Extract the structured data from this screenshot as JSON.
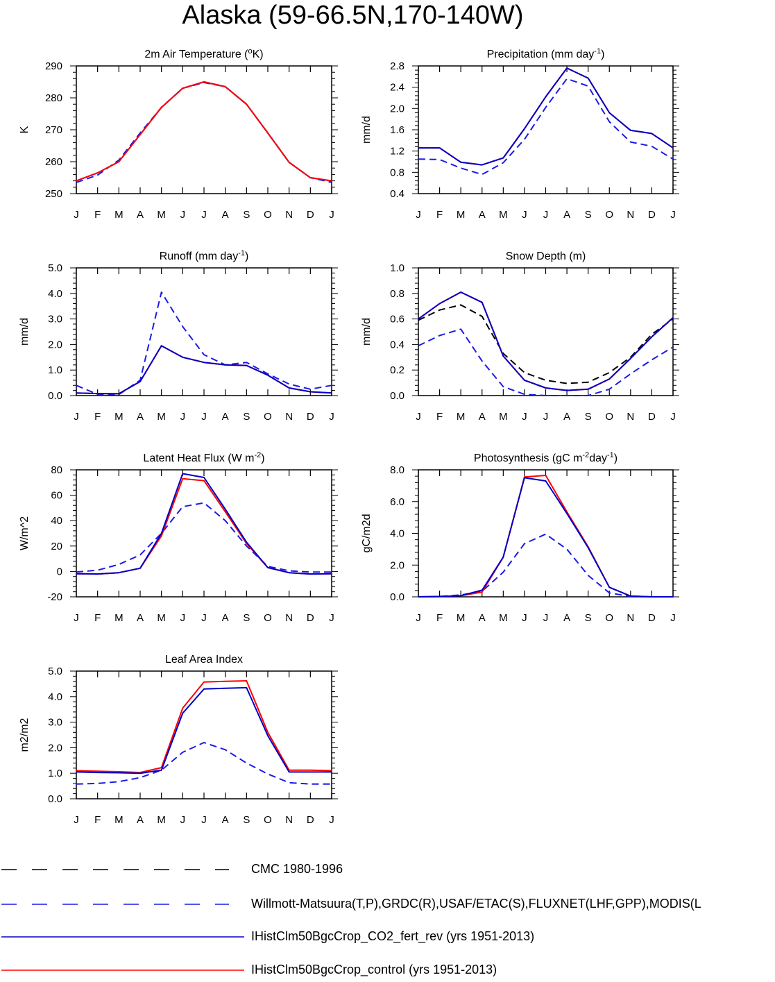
{
  "title": "Alaska (59-66.5N,170-140W)",
  "legend": [
    {
      "label": "CMC 1980-1996",
      "color": "#000000",
      "dashed": true
    },
    {
      "label": "Willmott-Matsuura(T,P),GRDC(R),USAF/ETAC(S),FLUXNET(LHF,GPP),MODIS(L",
      "color": "#1a1ae6",
      "dashed": true
    },
    {
      "label": "IHistClm50BgcCrop_CO2_fert_rev (yrs 1951-2013)",
      "color": "#0000c8",
      "dashed": false
    },
    {
      "label": "IHistClm50BgcCrop_control (yrs 1951-2013)",
      "color": "#ff0000",
      "dashed": false
    }
  ],
  "chart_data": [
    {
      "type": "line",
      "title": "2m Air Temperature (°K)",
      "title_main": "2m Air Temperature (",
      "title_sup": "o",
      "title_end": "K)",
      "ylabel": "K",
      "xlabels": [
        "J",
        "F",
        "M",
        "A",
        "M",
        "J",
        "J",
        "A",
        "S",
        "O",
        "N",
        "D",
        "J"
      ],
      "ylim": [
        250,
        290
      ],
      "yticks": [
        250,
        260,
        270,
        280,
        290
      ],
      "ytick_labels": [
        "250",
        "260",
        "270",
        "280",
        "290"
      ],
      "series": [
        {
          "style": "obs",
          "values": [
            253.5,
            255.8,
            260.5,
            269.0,
            277.0,
            283.0,
            284.8,
            283.5,
            278.0,
            269.0,
            259.8,
            255.0,
            253.5
          ]
        },
        {
          "style": "co2",
          "values": [
            254.0,
            256.5,
            260.0,
            268.5,
            277.0,
            283.0,
            285.0,
            283.5,
            278.0,
            269.0,
            259.8,
            255.0,
            254.0
          ]
        },
        {
          "style": "control",
          "values": [
            254.0,
            256.5,
            260.0,
            268.5,
            277.0,
            283.0,
            285.0,
            283.5,
            278.0,
            269.0,
            259.8,
            255.0,
            254.0
          ]
        }
      ]
    },
    {
      "type": "line",
      "title": "Precipitation (mm day-1)",
      "title_main": "Precipitation (mm day",
      "title_sup": "-1",
      "title_end": ")",
      "ylabel": "mm/d",
      "xlabels": [
        "J",
        "F",
        "M",
        "A",
        "M",
        "J",
        "J",
        "A",
        "S",
        "O",
        "N",
        "D",
        "J"
      ],
      "ylim": [
        0.4,
        2.8
      ],
      "yticks": [
        0.4,
        0.8,
        1.2,
        1.6,
        2.0,
        2.4,
        2.8
      ],
      "ytick_labels": [
        "0.4",
        "0.8",
        "1.2",
        "1.6",
        "2.0",
        "2.4",
        "2.8"
      ],
      "series": [
        {
          "style": "obs",
          "values": [
            1.05,
            1.04,
            0.88,
            0.76,
            0.98,
            1.42,
            2.02,
            2.56,
            2.42,
            1.75,
            1.37,
            1.29,
            1.05
          ]
        },
        {
          "style": "control",
          "values": [
            1.26,
            1.26,
            0.99,
            0.94,
            1.07,
            1.62,
            2.22,
            2.76,
            2.57,
            1.92,
            1.59,
            1.53,
            1.26
          ]
        },
        {
          "style": "co2",
          "values": [
            1.26,
            1.26,
            0.99,
            0.94,
            1.07,
            1.62,
            2.22,
            2.76,
            2.57,
            1.92,
            1.59,
            1.53,
            1.26
          ]
        }
      ]
    },
    {
      "type": "line",
      "title": "Runoff (mm day-1)",
      "title_main": "Runoff (mm day",
      "title_sup": "-1",
      "title_end": ")",
      "ylabel": "mm/d",
      "xlabels": [
        "J",
        "F",
        "M",
        "A",
        "M",
        "J",
        "J",
        "A",
        "S",
        "O",
        "N",
        "D",
        "J"
      ],
      "ylim": [
        0.0,
        5.0
      ],
      "yticks": [
        0.0,
        1.0,
        2.0,
        3.0,
        4.0,
        5.0
      ],
      "ytick_labels": [
        "0.0",
        "1.0",
        "2.0",
        "3.0",
        "4.0",
        "5.0"
      ],
      "series": [
        {
          "style": "obs",
          "values": [
            0.4,
            0.05,
            0.04,
            0.6,
            4.05,
            2.7,
            1.6,
            1.2,
            1.3,
            0.85,
            0.45,
            0.25,
            0.4
          ]
        },
        {
          "style": "control",
          "values": [
            0.1,
            0.08,
            0.07,
            0.55,
            1.95,
            1.5,
            1.3,
            1.2,
            1.18,
            0.8,
            0.3,
            0.15,
            0.1
          ]
        },
        {
          "style": "co2",
          "values": [
            0.1,
            0.08,
            0.07,
            0.55,
            1.95,
            1.5,
            1.3,
            1.2,
            1.18,
            0.8,
            0.3,
            0.15,
            0.1
          ]
        }
      ]
    },
    {
      "type": "line",
      "title": "Snow Depth (m)",
      "title_main": "Snow Depth (m)",
      "title_sup": "",
      "title_end": "",
      "ylabel": "mm/d",
      "xlabels": [
        "J",
        "F",
        "M",
        "A",
        "M",
        "J",
        "J",
        "A",
        "S",
        "O",
        "N",
        "D",
        "J"
      ],
      "ylim": [
        0.0,
        1.0
      ],
      "yticks": [
        0.0,
        0.2,
        0.4,
        0.6,
        0.8,
        1.0
      ],
      "ytick_labels": [
        "0.0",
        "0.2",
        "0.4",
        "0.6",
        "0.8",
        "1.0"
      ],
      "series": [
        {
          "style": "cmc",
          "values": [
            0.59,
            0.67,
            0.71,
            0.62,
            0.33,
            0.18,
            0.12,
            0.095,
            0.105,
            0.18,
            0.3,
            0.48,
            0.6
          ]
        },
        {
          "style": "obs",
          "values": [
            0.39,
            0.47,
            0.52,
            0.27,
            0.07,
            0.01,
            0.0,
            0.0,
            0.0,
            0.05,
            0.17,
            0.28,
            0.38
          ]
        },
        {
          "style": "control",
          "values": [
            0.6,
            0.72,
            0.81,
            0.73,
            0.31,
            0.12,
            0.06,
            0.04,
            0.05,
            0.13,
            0.29,
            0.46,
            0.61
          ]
        },
        {
          "style": "co2",
          "values": [
            0.6,
            0.72,
            0.81,
            0.73,
            0.31,
            0.12,
            0.06,
            0.04,
            0.05,
            0.13,
            0.29,
            0.46,
            0.61
          ]
        }
      ]
    },
    {
      "type": "line",
      "title": "Latent Heat Flux (W m-2)",
      "title_main": "Latent Heat Flux (W m",
      "title_sup": "-2",
      "title_end": ")",
      "ylabel": "W/m^2",
      "xlabels": [
        "J",
        "F",
        "M",
        "A",
        "M",
        "J",
        "J",
        "A",
        "S",
        "O",
        "N",
        "D",
        "J"
      ],
      "ylim": [
        -20,
        80
      ],
      "yticks": [
        -20,
        0,
        20,
        40,
        60,
        80
      ],
      "ytick_labels": [
        "-20",
        "0",
        "20",
        "40",
        "60",
        "80"
      ],
      "series": [
        {
          "style": "obs",
          "values": [
            -0.5,
            1.0,
            5.5,
            13.0,
            30.0,
            51.0,
            54.0,
            40.0,
            20.0,
            4.0,
            0.5,
            -0.5,
            -0.5
          ]
        },
        {
          "style": "control",
          "values": [
            -1.8,
            -2.0,
            -1.0,
            2.5,
            28.0,
            73.0,
            71.5,
            47.0,
            22.0,
            3.0,
            -1.0,
            -2.0,
            -1.8
          ]
        },
        {
          "style": "co2",
          "values": [
            -1.8,
            -2.0,
            -1.0,
            2.5,
            30.0,
            77.0,
            74.0,
            49.0,
            23.0,
            3.0,
            -1.0,
            -2.0,
            -1.8
          ]
        }
      ]
    },
    {
      "type": "line",
      "title": "Photosynthesis (gC m-2day-1)",
      "title_main": "Photosynthesis (gC m",
      "title_sup": "-2",
      "title_mid": "day",
      "title_sup2": "-1",
      "title_end": ")",
      "ylabel": "gC/m2d",
      "xlabels": [
        "J",
        "F",
        "M",
        "A",
        "M",
        "J",
        "J",
        "A",
        "S",
        "O",
        "N",
        "D",
        "J"
      ],
      "ylim": [
        0.0,
        8.0
      ],
      "yticks": [
        0.0,
        2.0,
        4.0,
        6.0,
        8.0
      ],
      "ytick_labels": [
        "0.0",
        "2.0",
        "4.0",
        "6.0",
        "8.0"
      ],
      "series": [
        {
          "style": "obs",
          "values": [
            0.0,
            0.02,
            0.12,
            0.35,
            1.55,
            3.35,
            3.95,
            3.0,
            1.35,
            0.25,
            0.02,
            0.0,
            0.0
          ]
        },
        {
          "style": "control",
          "values": [
            0.0,
            0.02,
            0.07,
            0.3,
            2.5,
            7.55,
            7.65,
            5.35,
            3.15,
            0.6,
            0.05,
            0.0,
            0.0
          ]
        },
        {
          "style": "co2",
          "values": [
            0.0,
            0.02,
            0.07,
            0.42,
            2.5,
            7.5,
            7.3,
            5.25,
            3.1,
            0.6,
            0.05,
            0.0,
            0.0
          ]
        }
      ]
    },
    {
      "type": "line",
      "title": "Leaf Area Index",
      "title_main": "Leaf Area Index",
      "title_sup": "",
      "title_end": "",
      "ylabel": "m2/m2",
      "xlabels": [
        "J",
        "F",
        "M",
        "A",
        "M",
        "J",
        "J",
        "A",
        "S",
        "O",
        "N",
        "D",
        "J"
      ],
      "ylim": [
        0.0,
        5.0
      ],
      "yticks": [
        0.0,
        1.0,
        2.0,
        3.0,
        4.0,
        5.0
      ],
      "ytick_labels": [
        "0.0",
        "1.0",
        "2.0",
        "3.0",
        "4.0",
        "5.0"
      ],
      "series": [
        {
          "style": "obs",
          "values": [
            0.58,
            0.6,
            0.67,
            0.83,
            1.12,
            1.82,
            2.2,
            1.92,
            1.4,
            0.97,
            0.63,
            0.58,
            0.58
          ]
        },
        {
          "style": "control",
          "values": [
            1.1,
            1.08,
            1.06,
            1.03,
            1.22,
            3.55,
            4.57,
            4.6,
            4.62,
            2.6,
            1.12,
            1.12,
            1.1
          ]
        },
        {
          "style": "co2",
          "values": [
            1.05,
            1.03,
            1.02,
            1.0,
            1.12,
            3.35,
            4.3,
            4.33,
            4.35,
            2.47,
            1.05,
            1.05,
            1.05
          ]
        }
      ]
    }
  ]
}
